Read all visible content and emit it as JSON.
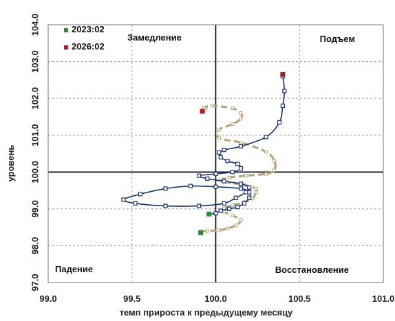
{
  "chart_data": {
    "type": "scatter",
    "xlabel": "темп прироста к предыдущему месяцу",
    "ylabel": "уровень",
    "xlim": [
      99.0,
      101.0
    ],
    "ylim": [
      97.0,
      104.0
    ],
    "x_ticks": [
      99.0,
      99.5,
      100.0,
      100.5,
      101.0
    ],
    "y_ticks": [
      97.0,
      98.0,
      99.0,
      100.0,
      101.0,
      102.0,
      103.0,
      104.0
    ],
    "x_tick_labels": [
      "99.0",
      "99.5",
      "100.0",
      "100.5",
      "101.0"
    ],
    "y_tick_labels": [
      "97.0",
      "98.0",
      "99.0",
      "100.0",
      "101.0",
      "102.0",
      "103.0",
      "104.0"
    ],
    "cross_x": 100.0,
    "cross_y": 100.0,
    "grid": true,
    "legend_position": "top-left",
    "quadrants": {
      "top_left": "Замедление",
      "top_right": "Подъем",
      "bottom_left": "Падение",
      "bottom_right": "Восстановление"
    },
    "legend": [
      {
        "label": "2023:02",
        "color": "#2e8b3a"
      },
      {
        "label": "2026:02",
        "color": "#b01c1c"
      }
    ],
    "series": [
      {
        "style": "dashed",
        "color": "#b5a57f",
        "marker_color": "#ffffff",
        "points": [
          [
            99.91,
            98.39
          ],
          [
            99.95,
            98.4
          ],
          [
            100.02,
            98.42
          ],
          [
            100.07,
            98.47
          ],
          [
            100.12,
            98.55
          ],
          [
            100.15,
            98.7
          ],
          [
            100.1,
            98.82
          ],
          [
            100.05,
            98.92
          ],
          [
            100.05,
            99.02
          ],
          [
            100.1,
            99.1
          ],
          [
            100.17,
            99.18
          ],
          [
            100.22,
            99.28
          ],
          [
            100.24,
            99.45
          ],
          [
            100.24,
            99.55
          ],
          [
            100.17,
            99.65
          ],
          [
            100.07,
            99.72
          ],
          [
            100.03,
            99.78
          ],
          [
            100.08,
            99.85
          ],
          [
            100.18,
            99.9
          ],
          [
            100.3,
            99.95
          ],
          [
            100.35,
            100.05
          ],
          [
            100.35,
            100.3
          ],
          [
            100.3,
            100.55
          ],
          [
            100.15,
            100.8
          ],
          [
            100.02,
            100.92
          ],
          [
            100.02,
            101.15
          ],
          [
            100.1,
            101.3
          ],
          [
            100.15,
            101.45
          ],
          [
            100.15,
            101.6
          ],
          [
            100.1,
            101.73
          ],
          [
            99.98,
            101.8
          ],
          [
            99.93,
            101.75
          ],
          [
            99.94,
            101.7
          ]
        ]
      },
      {
        "style": "solid",
        "color": "#17307a",
        "marker_color": "#ffffff",
        "points": [
          [
            99.96,
            98.86
          ],
          [
            100.0,
            98.88
          ],
          [
            100.03,
            98.95
          ],
          [
            100.08,
            99.0
          ],
          [
            100.13,
            99.05
          ],
          [
            100.17,
            99.15
          ],
          [
            100.2,
            99.3
          ],
          [
            100.2,
            99.45
          ],
          [
            100.15,
            99.55
          ],
          [
            100.0,
            99.6
          ],
          [
            99.85,
            99.62
          ],
          [
            99.7,
            99.55
          ],
          [
            99.55,
            99.4
          ],
          [
            99.45,
            99.25
          ],
          [
            99.52,
            99.15
          ],
          [
            99.7,
            99.08
          ],
          [
            99.9,
            99.08
          ],
          [
            100.05,
            99.15
          ],
          [
            100.12,
            99.3
          ],
          [
            100.18,
            99.45
          ],
          [
            100.2,
            99.58
          ],
          [
            100.15,
            99.68
          ],
          [
            100.05,
            99.75
          ],
          [
            99.95,
            99.82
          ],
          [
            99.9,
            99.9
          ],
          [
            100.0,
            99.95
          ],
          [
            100.1,
            100.0
          ],
          [
            100.15,
            100.1
          ],
          [
            100.13,
            100.22
          ],
          [
            100.07,
            100.3
          ],
          [
            100.03,
            100.4
          ],
          [
            100.02,
            100.53
          ],
          [
            100.05,
            100.6
          ],
          [
            100.15,
            100.7
          ],
          [
            100.3,
            100.95
          ],
          [
            100.38,
            101.35
          ],
          [
            100.4,
            101.8
          ],
          [
            100.41,
            102.2
          ],
          [
            100.4,
            102.6
          ]
        ]
      }
    ],
    "endpoints": [
      {
        "label": "2023:02",
        "color": "#2e8b3a",
        "points": [
          [
            99.91,
            98.35
          ],
          [
            99.96,
            98.86
          ]
        ]
      },
      {
        "label": "2026:02",
        "color": "#b01c1c",
        "points": [
          [
            99.92,
            101.65
          ],
          [
            100.4,
            102.65
          ]
        ]
      }
    ]
  }
}
